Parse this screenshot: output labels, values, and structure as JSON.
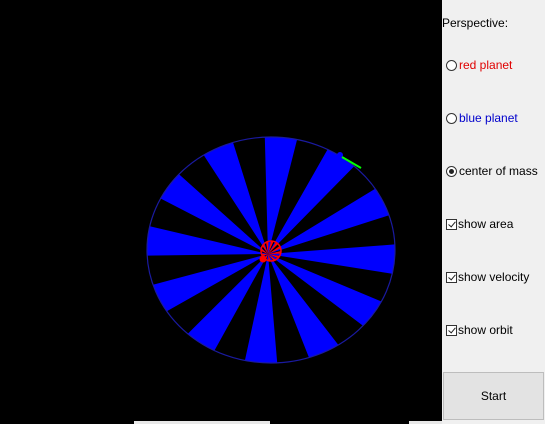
{
  "panel": {
    "perspective_label": "Perspective:",
    "options": [
      {
        "label": "red planet",
        "color": "#e00000",
        "selected": false
      },
      {
        "label": "blue planet",
        "color": "#0000cc",
        "selected": false
      },
      {
        "label": "center of mass",
        "color": "#000000",
        "selected": true
      }
    ],
    "checks": [
      {
        "label": "show area",
        "checked": true
      },
      {
        "label": "show velocity",
        "checked": true
      },
      {
        "label": "show orbit",
        "checked": true
      }
    ],
    "start_label": "Start"
  },
  "simulation": {
    "background": "#000000",
    "orbit_color": "#1a1aa0",
    "area_color": "#0000ff",
    "red_planet_color": "#ff0000",
    "blue_planet_color": "#0000ff",
    "velocity_color": "#00ff00"
  }
}
